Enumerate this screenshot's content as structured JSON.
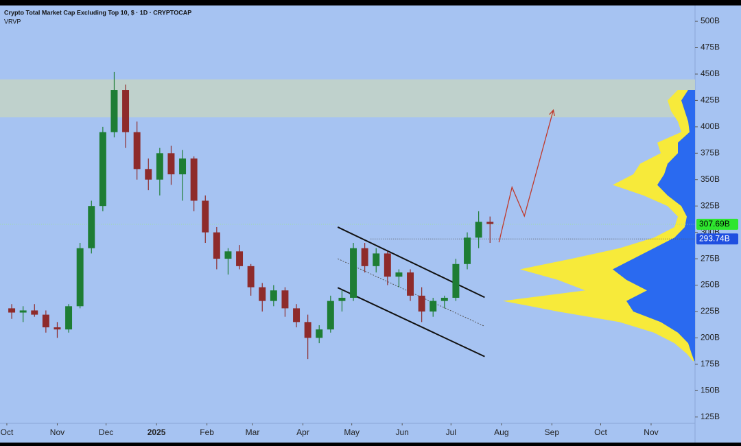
{
  "chart_data": {
    "type": "candlestick",
    "title": "Crypto Total Market Cap Excluding Top 10, $ · 1D · CRYPTOCAP",
    "subtitle": "VRVP",
    "x": [
      3,
      10,
      17,
      24,
      31,
      38,
      45,
      52,
      59,
      66,
      73,
      80,
      87,
      94,
      101,
      108,
      115,
      122,
      129,
      136,
      143,
      150,
      157,
      164,
      171,
      178,
      185,
      192,
      199,
      206,
      213,
      220,
      227,
      234,
      241,
      248,
      255,
      262,
      269,
      276,
      283,
      290,
      297
    ],
    "open": [
      228,
      224,
      226,
      222,
      210,
      208,
      230,
      285,
      325,
      395,
      435,
      395,
      360,
      350,
      375,
      355,
      370,
      330,
      300,
      275,
      282,
      268,
      248,
      235,
      245,
      228,
      215,
      200,
      208,
      235,
      238,
      285,
      268,
      280,
      258,
      262,
      240,
      225,
      235,
      238,
      270,
      295,
      310
    ],
    "high": [
      232,
      230,
      232,
      226,
      215,
      232,
      290,
      330,
      400,
      452,
      440,
      405,
      370,
      380,
      382,
      378,
      372,
      335,
      305,
      285,
      288,
      270,
      252,
      250,
      248,
      232,
      222,
      212,
      240,
      245,
      290,
      290,
      285,
      282,
      265,
      265,
      248,
      238,
      240,
      275,
      300,
      320,
      315
    ],
    "low": [
      218,
      215,
      220,
      205,
      200,
      205,
      228,
      280,
      320,
      390,
      380,
      350,
      340,
      335,
      345,
      330,
      320,
      290,
      265,
      260,
      265,
      240,
      225,
      230,
      220,
      210,
      180,
      195,
      205,
      225,
      235,
      262,
      262,
      250,
      248,
      235,
      215,
      220,
      228,
      235,
      265,
      285,
      290
    ],
    "close": [
      224,
      226,
      222,
      210,
      208,
      230,
      285,
      325,
      395,
      435,
      395,
      360,
      350,
      375,
      355,
      370,
      330,
      300,
      275,
      282,
      268,
      248,
      235,
      245,
      228,
      215,
      200,
      208,
      235,
      238,
      285,
      268,
      280,
      258,
      262,
      240,
      225,
      235,
      238,
      270,
      295,
      310,
      308
    ],
    "up_color": "#1e7d34",
    "down_color": "#8e2b2b",
    "xlim": [
      -4.2,
      423
    ],
    "xticks": [
      {
        "value": 0,
        "label": "Oct"
      },
      {
        "value": 31,
        "label": "Nov"
      },
      {
        "value": 61,
        "label": "Dec"
      },
      {
        "value": 92,
        "label": "2025"
      },
      {
        "value": 123,
        "label": "Feb"
      },
      {
        "value": 151,
        "label": "Mar"
      },
      {
        "value": 182,
        "label": "Apr"
      },
      {
        "value": 212,
        "label": "May"
      },
      {
        "value": 243,
        "label": "Jun"
      },
      {
        "value": 273,
        "label": "Jul"
      },
      {
        "value": 304,
        "label": "Aug"
      },
      {
        "value": 335,
        "label": "Sep"
      },
      {
        "value": 365,
        "label": "Oct"
      },
      {
        "value": 396,
        "label": "Nov"
      }
    ],
    "ylim": [
      119,
      515
    ],
    "yticks": [
      {
        "value": 500,
        "label": "500B"
      },
      {
        "value": 475,
        "label": "475B"
      },
      {
        "value": 450,
        "label": "450B"
      },
      {
        "value": 425,
        "label": "425B"
      },
      {
        "value": 400,
        "label": "400B"
      },
      {
        "value": 375,
        "label": "375B"
      },
      {
        "value": 350,
        "label": "350B"
      },
      {
        "value": 325,
        "label": "325B"
      },
      {
        "value": 300,
        "label": "300B"
      },
      {
        "value": 275,
        "label": "275B"
      },
      {
        "value": 250,
        "label": "250B"
      },
      {
        "value": 225,
        "label": "225B"
      },
      {
        "value": 200,
        "label": "200B"
      },
      {
        "value": 175,
        "label": "175B"
      },
      {
        "value": 150,
        "label": "150B"
      },
      {
        "value": 125,
        "label": "125B"
      }
    ],
    "price_tags": [
      {
        "value": 307.69,
        "label": "307.69B",
        "color": "#2ee62e"
      },
      {
        "value": 293.74,
        "label": "293.74B",
        "color": "#1f4fe0"
      }
    ],
    "zone": [
      409,
      445
    ],
    "channel_upper": {
      "x": [
        203.4,
        293.7
      ],
      "values": [
        305,
        238.4
      ]
    },
    "channel_lower": {
      "x": [
        203.4,
        293.7
      ],
      "values": [
        247.6,
        182.3
      ]
    },
    "channel_mid": {
      "x": [
        203.4,
        293.7
      ],
      "values": [
        275,
        211
      ]
    },
    "projection": {
      "x": [
        302.5,
        310.5,
        318.1,
        335.9
      ],
      "values": [
        290.6,
        342.8,
        315.4,
        415.9
      ],
      "color": "#c0392b"
    },
    "volume_profile": {
      "levels": [
        435,
        425,
        415,
        405,
        395,
        385,
        375,
        365,
        355,
        345,
        335,
        325,
        315,
        305,
        295,
        285,
        275,
        265,
        255,
        245,
        235,
        225,
        215,
        205,
        195,
        185,
        178
      ],
      "total": [
        25,
        40,
        35,
        25,
        20,
        55,
        50,
        80,
        90,
        120,
        75,
        40,
        25,
        30,
        60,
        110,
        180,
        255,
        200,
        160,
        280,
        200,
        110,
        60,
        30,
        12,
        3
      ],
      "up": [
        10,
        20,
        15,
        10,
        8,
        25,
        25,
        40,
        45,
        55,
        40,
        20,
        12,
        15,
        30,
        60,
        90,
        120,
        100,
        70,
        100,
        90,
        50,
        25,
        10,
        5,
        1
      ],
      "total_color": "#f7ea3a",
      "up_color": "#2a6af0"
    }
  }
}
